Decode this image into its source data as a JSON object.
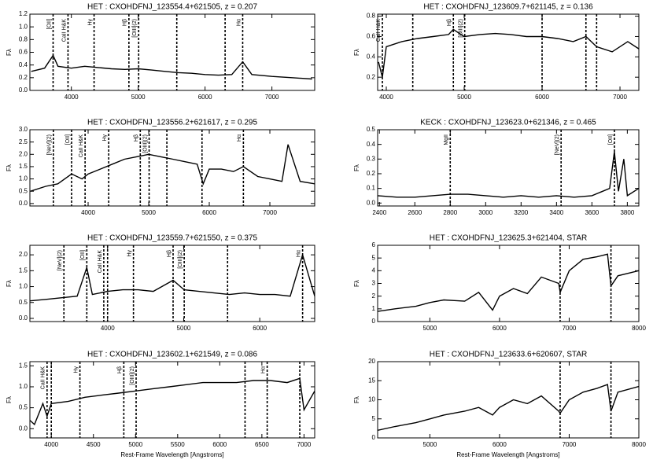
{
  "chart_data": [
    {
      "type": "line",
      "title": "HET : CXOHDFNJ_123554.4+621505, z = 0.207",
      "ylabel": "Fλ",
      "color": "#000000",
      "x": [
        3400,
        3600,
        3727,
        3800,
        4000,
        4200,
        4400,
        4600,
        4800,
        5000,
        5200,
        5400,
        5600,
        5800,
        6000,
        6200,
        6400,
        6563,
        6700,
        7000,
        7300,
        7600
      ],
      "values": [
        0.3,
        0.35,
        0.55,
        0.38,
        0.35,
        0.38,
        0.36,
        0.34,
        0.33,
        0.34,
        0.32,
        0.3,
        0.28,
        0.27,
        0.25,
        0.24,
        0.25,
        0.45,
        0.25,
        0.22,
        0.2,
        0.18
      ],
      "xlim": [
        3380,
        7640
      ],
      "xticks": [
        4000,
        5000,
        6000,
        7000
      ],
      "ylim": [
        0,
        1.2
      ],
      "yticks": [
        {
          "value": 0,
          "label": "0.0"
        },
        0.2,
        0.4,
        0.6,
        0.8,
        {
          "value": 1,
          "label": "1.0"
        },
        1.2
      ],
      "lines": [
        {
          "x": 3727,
          "label": "[OII]"
        },
        {
          "x": 3950,
          "label": "CaII H&K"
        },
        {
          "x": 4340,
          "label": "Hγ"
        },
        {
          "x": 4861,
          "label": "Hβ"
        },
        {
          "x": 5007,
          "label": "[OIII](2)"
        },
        {
          "x": 5577
        },
        {
          "x": 6300
        },
        {
          "x": 6563,
          "label": "Hα"
        }
      ]
    },
    {
      "type": "line",
      "title": "HET : CXOHDFNJ_123609.7+621145, z = 0.136",
      "ylabel": "Fλ",
      "color": "#000000",
      "x": [
        3900,
        3950,
        4000,
        4200,
        4400,
        4600,
        4800,
        4861,
        5000,
        5200,
        5400,
        5600,
        5800,
        6000,
        6200,
        6400,
        6563,
        6700,
        6900,
        7100,
        7240
      ],
      "values": [
        0.35,
        0.2,
        0.5,
        0.55,
        0.58,
        0.6,
        0.62,
        0.67,
        0.6,
        0.62,
        0.63,
        0.62,
        0.6,
        0.6,
        0.58,
        0.55,
        0.6,
        0.5,
        0.45,
        0.55,
        0.48
      ],
      "xlim": [
        3889,
        7242
      ],
      "xticks": [
        4000,
        5000,
        6000,
        7000
      ],
      "ylim": [
        0.07,
        0.82
      ],
      "yticks": [
        0.2,
        0.4,
        0.6,
        0.8
      ],
      "lines": [
        {
          "x": 3950,
          "label": "CaII H&K"
        },
        {
          "x": 4340
        },
        {
          "x": 4861,
          "label": "Hβ"
        },
        {
          "x": 5007,
          "label": "[OIII](2)"
        },
        {
          "x": 6000
        },
        {
          "x": 6563
        },
        {
          "x": 6700
        }
      ]
    },
    {
      "type": "line",
      "title": "HET : CXOHDFNJ_123556.2+621617, z = 0.295",
      "ylabel": "Fλ",
      "color": "#000000",
      "x": [
        3050,
        3300,
        3500,
        3727,
        3900,
        4000,
        4200,
        4400,
        4600,
        4800,
        5000,
        5200,
        5400,
        5600,
        5800,
        5900,
        6000,
        6200,
        6400,
        6563,
        6800,
        7000,
        7200,
        7300,
        7500,
        7740
      ],
      "values": [
        0.5,
        0.7,
        0.8,
        1.2,
        1.0,
        1.2,
        1.4,
        1.6,
        1.8,
        1.9,
        2.0,
        1.9,
        1.8,
        1.7,
        1.6,
        0.8,
        1.4,
        1.4,
        1.3,
        1.5,
        1.1,
        1.0,
        0.9,
        2.4,
        0.9,
        0.8
      ],
      "xlim": [
        3039,
        7740
      ],
      "xticks": [
        4000,
        5000,
        6000,
        7000
      ],
      "ylim": [
        -0.1,
        3.0
      ],
      "yticks": [
        {
          "value": 0,
          "label": "0.0"
        },
        0.5,
        {
          "value": 1,
          "label": "1.0"
        },
        1.5,
        {
          "value": 2,
          "label": "2.0"
        },
        2.5,
        {
          "value": 3,
          "label": "3.0"
        }
      ],
      "lines": [
        {
          "x": 3426,
          "label": "[NeV](2)"
        },
        {
          "x": 3727,
          "label": "[OII]"
        },
        {
          "x": 3950,
          "label": "CaII H&K"
        },
        {
          "x": 4340,
          "label": "Hγ"
        },
        {
          "x": 4861,
          "label": "Hβ"
        },
        {
          "x": 5007,
          "label": "[OIII](2)"
        },
        {
          "x": 5300
        },
        {
          "x": 5880
        },
        {
          "x": 6563,
          "label": "Hα"
        }
      ]
    },
    {
      "type": "line",
      "title": "KECK : CXOHDFNJ_123623.0+621346, z = 0.465",
      "ylabel": "Fλ",
      "color": "#000000",
      "x": [
        2390,
        2500,
        2600,
        2700,
        2800,
        2900,
        3000,
        3100,
        3200,
        3300,
        3400,
        3500,
        3600,
        3700,
        3727,
        3750,
        3780,
        3800,
        3865
      ],
      "values": [
        0.05,
        0.04,
        0.04,
        0.05,
        0.06,
        0.06,
        0.05,
        0.04,
        0.05,
        0.04,
        0.05,
        0.04,
        0.05,
        0.1,
        0.35,
        0.08,
        0.3,
        0.05,
        0.1
      ],
      "xlim": [
        2390,
        3865
      ],
      "xticks": [
        2400,
        2600,
        2800,
        3000,
        3200,
        3400,
        3600,
        3800
      ],
      "ylim": [
        -0.02,
        0.5
      ],
      "yticks": [
        {
          "value": 0,
          "label": "0.0"
        },
        0.1,
        0.2,
        0.3,
        0.4,
        0.5
      ],
      "lines": [
        {
          "x": 2800,
          "label": "MgII"
        },
        {
          "x": 3426,
          "label": "[NeV](2)"
        },
        {
          "x": 3727,
          "label": "[OII]"
        }
      ]
    },
    {
      "type": "line",
      "title": "HET : CXOHDFNJ_123559.7+621550, z = 0.375",
      "ylabel": "Fλ",
      "color": "#000000",
      "x": [
        2980,
        3200,
        3400,
        3600,
        3727,
        3800,
        4000,
        4200,
        4400,
        4600,
        4861,
        5007,
        5200,
        5400,
        5600,
        5800,
        6000,
        6200,
        6400,
        6563,
        6722
      ],
      "values": [
        0.55,
        0.6,
        0.65,
        0.7,
        1.6,
        0.75,
        0.85,
        0.9,
        0.9,
        0.85,
        1.2,
        0.9,
        0.85,
        0.8,
        0.75,
        0.8,
        0.75,
        0.75,
        0.7,
        2.0,
        0.7
      ],
      "xlim": [
        2979,
        6722
      ],
      "xticks": [
        4000,
        5000,
        6000
      ],
      "ylim": [
        -0.1,
        2.3
      ],
      "yticks": [
        {
          "value": 0,
          "label": "0.0"
        },
        0.5,
        {
          "value": 1,
          "label": "1.0"
        },
        1.5,
        {
          "value": 2,
          "label": "2.0"
        }
      ],
      "lines": [
        {
          "x": 3426,
          "label": "[NeV](2)"
        },
        {
          "x": 3727,
          "label": "[OII]"
        },
        {
          "x": 3950,
          "label": "CaII H&K"
        },
        {
          "x": 4000
        },
        {
          "x": 4340,
          "label": "Hγ"
        },
        {
          "x": 4861,
          "label": "Hβ"
        },
        {
          "x": 5007,
          "label": "[OIII](2)"
        },
        {
          "x": 5577
        },
        {
          "x": 6563,
          "label": "Hα"
        }
      ]
    },
    {
      "type": "line",
      "title": "HET : CXOHDFNJ_123625.3+621404, STAR",
      "ylabel": "Fλ",
      "color": "#000000",
      "x": [
        4250,
        4500,
        4800,
        5000,
        5200,
        5500,
        5700,
        5900,
        6000,
        6200,
        6400,
        6600,
        6850,
        6870,
        7000,
        7200,
        7400,
        7550,
        7600,
        7700,
        8000
      ],
      "values": [
        0.8,
        1.0,
        1.2,
        1.5,
        1.7,
        1.6,
        2.3,
        0.9,
        2.0,
        2.6,
        2.2,
        3.5,
        3.0,
        2.3,
        4.0,
        4.9,
        5.1,
        5.3,
        2.8,
        3.6,
        4.0
      ],
      "xlim": [
        4250,
        8000
      ],
      "xticks": [
        5000,
        6000,
        7000,
        8000
      ],
      "ylim": [
        0,
        6
      ],
      "yticks": [
        0,
        1,
        2,
        3,
        4,
        5,
        6
      ],
      "lines": [
        {
          "x": 6870
        },
        {
          "x": 7600
        }
      ]
    },
    {
      "type": "line",
      "title": "HET : CXOHDFNJ_123602.1+621549, z = 0.086",
      "ylabel": "Fλ",
      "xlabel": "Rest-Frame Wavelength [Angstroms]",
      "color": "#000000",
      "x": [
        3746,
        3800,
        3900,
        3950,
        4000,
        4200,
        4400,
        4600,
        4800,
        5000,
        5200,
        5400,
        5600,
        5800,
        6000,
        6200,
        6400,
        6600,
        6800,
        6950,
        7000,
        7127
      ],
      "values": [
        0.2,
        0.1,
        0.6,
        0.3,
        0.6,
        0.65,
        0.75,
        0.8,
        0.85,
        0.9,
        0.95,
        1.0,
        1.05,
        1.1,
        1.1,
        1.1,
        1.15,
        1.15,
        1.1,
        1.2,
        0.45,
        0.9
      ],
      "xlim": [
        3746,
        7127
      ],
      "xticks": [
        4000,
        4500,
        5000,
        5500,
        6000,
        6500,
        7000
      ],
      "ylim": [
        -0.22,
        1.6
      ],
      "yticks": [
        {
          "value": 0,
          "label": "0.0"
        },
        0.5,
        {
          "value": 1,
          "label": "1.0"
        },
        1.5
      ],
      "lines": [
        {
          "x": 3950,
          "label": "CaII H&K"
        },
        {
          "x": 4000
        },
        {
          "x": 4340,
          "label": "Hγ"
        },
        {
          "x": 4861,
          "label": "Hβ"
        },
        {
          "x": 5007,
          "label": "[OIII](2)"
        },
        {
          "x": 6300
        },
        {
          "x": 6563,
          "label": "Hα"
        },
        {
          "x": 6950
        }
      ]
    },
    {
      "type": "line",
      "title": "HET : CXOHDFNJ_123633.6+620607, STAR",
      "ylabel": "Fλ",
      "xlabel": "Rest-Frame Wavelength [Angstroms]",
      "color": "#000000",
      "x": [
        4250,
        4500,
        4800,
        5000,
        5200,
        5500,
        5700,
        5900,
        6000,
        6200,
        6400,
        6600,
        6850,
        6870,
        7000,
        7200,
        7400,
        7550,
        7600,
        7700,
        8000
      ],
      "values": [
        2,
        3,
        4,
        5,
        6,
        7,
        8,
        6,
        8,
        10,
        9,
        11,
        7,
        6.5,
        10,
        12,
        13,
        14,
        7,
        12,
        13.5
      ],
      "xlim": [
        4250,
        8000
      ],
      "xticks": [
        5000,
        6000,
        7000,
        8000
      ],
      "ylim": [
        0,
        20
      ],
      "yticks": [
        0,
        5,
        10,
        15,
        20
      ],
      "lines": [
        {
          "x": 6870
        },
        {
          "x": 7600
        }
      ]
    }
  ]
}
